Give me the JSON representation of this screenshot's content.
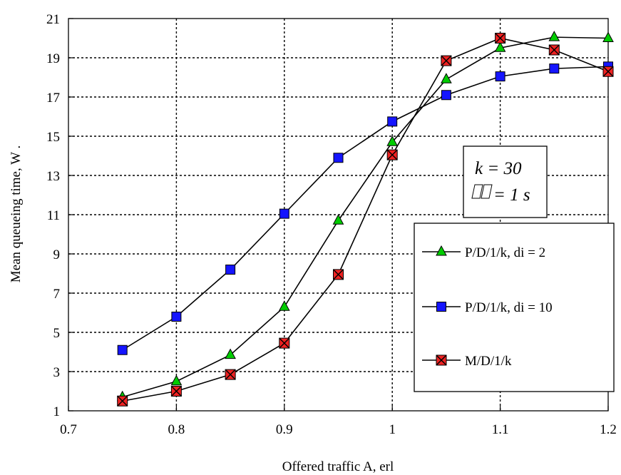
{
  "chart_data": {
    "type": "line",
    "xlabel": "Offered traffic A, erl",
    "ylabel": "Mean queueing time, W .",
    "xlim": [
      0.7,
      1.2
    ],
    "ylim": [
      1,
      21
    ],
    "x_ticks": [
      "0.7",
      "0.8",
      "0.9",
      "1",
      "1.1",
      "1.2"
    ],
    "y_ticks": [
      "1",
      "3",
      "5",
      "7",
      "9",
      "11",
      "13",
      "15",
      "17",
      "19",
      "21"
    ],
    "grid": "dotted",
    "annotation": {
      "line1": "k = 30",
      "line2": "= 1 s"
    },
    "legend_position": "right",
    "series": [
      {
        "name": "P/D/1/k, di = 2",
        "marker": "triangle",
        "color": "#00cc00",
        "x": [
          0.75,
          0.8,
          0.85,
          0.9,
          0.95,
          1.0,
          1.05,
          1.1,
          1.15,
          1.2
        ],
        "y": [
          1.7,
          2.5,
          3.85,
          6.3,
          10.7,
          14.7,
          17.9,
          19.5,
          20.05,
          20.0
        ]
      },
      {
        "name": "P/D/1/k, di = 10",
        "marker": "square",
        "color": "#1515ff",
        "x": [
          0.75,
          0.8,
          0.85,
          0.9,
          0.95,
          1.0,
          1.05,
          1.1,
          1.15,
          1.2
        ],
        "y": [
          4.1,
          5.8,
          8.2,
          11.05,
          13.9,
          15.75,
          17.1,
          18.05,
          18.45,
          18.55
        ]
      },
      {
        "name": "M/D/1/k",
        "marker": "x-square",
        "color": "#ee2222",
        "x": [
          0.75,
          0.8,
          0.85,
          0.9,
          0.95,
          1.0,
          1.05,
          1.1,
          1.15,
          1.2
        ],
        "y": [
          1.5,
          2.0,
          2.85,
          4.45,
          7.95,
          14.05,
          18.85,
          20.0,
          19.4,
          18.3
        ]
      }
    ]
  }
}
